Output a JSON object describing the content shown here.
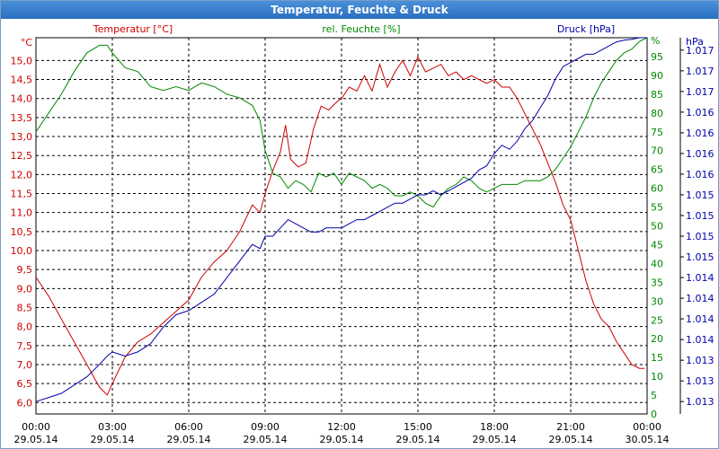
{
  "window": {
    "title": "Temperatur, Feuchte & Druck"
  },
  "chart_data": {
    "type": "line",
    "title": "Temperatur, Feuchte & Druck",
    "x_ticks": [
      {
        "time": "00:00",
        "date": "29.05.14"
      },
      {
        "time": "03:00",
        "date": "29.05.14"
      },
      {
        "time": "06:00",
        "date": "29.05.14"
      },
      {
        "time": "09:00",
        "date": "29.05.14"
      },
      {
        "time": "12:00",
        "date": "29.05.14"
      },
      {
        "time": "15:00",
        "date": "29.05.14"
      },
      {
        "time": "18:00",
        "date": "29.05.14"
      },
      {
        "time": "21:00",
        "date": "29.05.14"
      },
      {
        "time": "00:00",
        "date": "30.05.14"
      }
    ],
    "x_range_hours": [
      0,
      24
    ],
    "grid": true,
    "axes": {
      "temperature": {
        "label": "Temperatur [°C]",
        "unit": "°C",
        "color": "#cc0000",
        "ylim": [
          5.7,
          15.6
        ],
        "ticks": [
          "6,0",
          "6,5",
          "7,0",
          "7,5",
          "8,0",
          "8,5",
          "9,0",
          "9,5",
          "10,0",
          "10,5",
          "11,0",
          "11,5",
          "12,0",
          "12,5",
          "13,0",
          "13,5",
          "14,0",
          "14,5",
          "15,0"
        ]
      },
      "humidity": {
        "label": "rel. Feuchte [%]",
        "unit": "%",
        "color": "#008800",
        "ylim": [
          0,
          100
        ],
        "ticks": [
          "0",
          "5",
          "10",
          "15",
          "20",
          "25",
          "30",
          "35",
          "40",
          "45",
          "50",
          "55",
          "60",
          "65",
          "70",
          "75",
          "80",
          "85",
          "90",
          "95"
        ]
      },
      "pressure": {
        "label": "Druck [hPa]",
        "unit": "hPa",
        "color": "#0000aa",
        "ylim": [
          1012.75,
          1017.3
        ],
        "ticks": [
          {
            "v": 1012.9,
            "t": "1.013"
          },
          {
            "v": 1013.15,
            "t": "1.013"
          },
          {
            "v": 1013.4,
            "t": "1.013"
          },
          {
            "v": 1013.65,
            "t": "1.014"
          },
          {
            "v": 1013.9,
            "t": "1.014"
          },
          {
            "v": 1014.15,
            "t": "1.014"
          },
          {
            "v": 1014.4,
            "t": "1.014"
          },
          {
            "v": 1014.65,
            "t": "1.015"
          },
          {
            "v": 1014.9,
            "t": "1.015"
          },
          {
            "v": 1015.15,
            "t": "1.015"
          },
          {
            "v": 1015.4,
            "t": "1.015"
          },
          {
            "v": 1015.65,
            "t": "1.016"
          },
          {
            "v": 1015.9,
            "t": "1.016"
          },
          {
            "v": 1016.15,
            "t": "1.016"
          },
          {
            "v": 1016.4,
            "t": "1.016"
          },
          {
            "v": 1016.65,
            "t": "1.017"
          },
          {
            "v": 1016.9,
            "t": "1.017"
          },
          {
            "v": 1017.15,
            "t": "1.017"
          }
        ]
      }
    },
    "series": [
      {
        "name": "Temperatur [°C]",
        "axis": "temperature",
        "color": "#cc0000",
        "x": [
          0,
          0.5,
          1,
          1.5,
          2,
          2.5,
          2.8,
          3,
          3.5,
          4,
          4.5,
          5,
          5.5,
          6,
          6.5,
          7,
          7.5,
          8,
          8.5,
          8.8,
          9,
          9.3,
          9.6,
          9.8,
          10,
          10.3,
          10.6,
          10.9,
          11.2,
          11.5,
          11.8,
          12,
          12.3,
          12.6,
          12.9,
          13.2,
          13.5,
          13.8,
          14.1,
          14.4,
          14.7,
          15,
          15.3,
          15.6,
          15.9,
          16.2,
          16.5,
          16.8,
          17.1,
          17.4,
          17.7,
          18,
          18.3,
          18.6,
          18.9,
          19.2,
          19.5,
          19.8,
          20.1,
          20.4,
          20.7,
          21,
          21.3,
          21.6,
          21.9,
          22.2,
          22.5,
          22.8,
          23.1,
          23.4,
          23.7,
          23.9
        ],
        "values": [
          9.3,
          8.8,
          8.2,
          7.6,
          7.0,
          6.4,
          6.2,
          6.5,
          7.2,
          7.6,
          7.8,
          8.1,
          8.4,
          8.7,
          9.3,
          9.7,
          10.0,
          10.5,
          11.2,
          11.0,
          11.5,
          12.1,
          12.6,
          13.3,
          12.4,
          12.2,
          12.3,
          13.2,
          13.8,
          13.7,
          13.9,
          14.0,
          14.3,
          14.2,
          14.6,
          14.2,
          14.9,
          14.3,
          14.7,
          15.0,
          14.6,
          15.1,
          14.7,
          14.8,
          14.9,
          14.6,
          14.7,
          14.5,
          14.6,
          14.5,
          14.4,
          14.5,
          14.3,
          14.3,
          14.0,
          13.6,
          13.2,
          12.8,
          12.3,
          11.8,
          11.2,
          10.8,
          10.0,
          9.2,
          8.6,
          8.2,
          8.0,
          7.6,
          7.3,
          7.0,
          6.9,
          6.9
        ]
      },
      {
        "name": "rel. Feuchte [%]",
        "axis": "humidity",
        "color": "#008800",
        "x": [
          0,
          0.5,
          1,
          1.5,
          2,
          2.5,
          2.8,
          3,
          3.5,
          4,
          4.5,
          5,
          5.5,
          6,
          6.5,
          7,
          7.5,
          8,
          8.5,
          8.8,
          9,
          9.3,
          9.6,
          9.9,
          10.2,
          10.5,
          10.8,
          11.1,
          11.4,
          11.7,
          12,
          12.3,
          12.6,
          12.9,
          13.2,
          13.5,
          13.8,
          14.1,
          14.4,
          14.7,
          15,
          15.3,
          15.6,
          15.9,
          16.2,
          16.5,
          16.8,
          17.1,
          17.4,
          17.7,
          18,
          18.3,
          18.6,
          18.9,
          19.2,
          19.5,
          19.8,
          20.1,
          20.4,
          20.7,
          21,
          21.3,
          21.6,
          21.9,
          22.2,
          22.5,
          22.8,
          23.1,
          23.4,
          23.7,
          24
        ],
        "values": [
          75,
          80,
          85,
          91,
          96,
          98,
          98,
          96,
          92,
          91,
          87,
          86,
          87,
          86,
          88,
          87,
          85,
          84,
          82,
          78,
          70,
          64,
          63,
          60,
          62,
          61,
          59,
          64,
          63,
          64,
          61,
          64,
          63,
          62,
          60,
          61,
          60,
          58,
          58,
          59,
          58,
          56,
          55,
          58,
          60,
          61,
          63,
          62,
          60,
          59,
          60,
          61,
          61,
          61,
          62,
          62,
          62,
          63,
          65,
          68,
          71,
          75,
          79,
          84,
          88,
          91,
          94,
          96,
          97,
          99,
          100
        ]
      },
      {
        "name": "Druck [hPa]",
        "axis": "pressure",
        "color": "#0000aa",
        "x": [
          0,
          0.5,
          1,
          1.5,
          2,
          2.5,
          2.8,
          3,
          3.5,
          4,
          4.5,
          5,
          5.5,
          6,
          6.5,
          7,
          7.5,
          8,
          8.5,
          8.8,
          9,
          9.3,
          9.6,
          9.9,
          10.2,
          10.5,
          10.8,
          11.1,
          11.4,
          11.7,
          12,
          12.3,
          12.6,
          12.9,
          13.2,
          13.5,
          13.8,
          14.1,
          14.4,
          14.7,
          15,
          15.3,
          15.6,
          15.9,
          16.2,
          16.5,
          16.8,
          17.1,
          17.4,
          17.7,
          18,
          18.3,
          18.6,
          18.9,
          19.2,
          19.5,
          19.8,
          20.1,
          20.4,
          20.7,
          21,
          21.3,
          21.6,
          21.9,
          22.2,
          22.5,
          22.8,
          23.1,
          23.4,
          23.7,
          24
        ],
        "values": [
          1012.9,
          1012.95,
          1013.0,
          1013.1,
          1013.2,
          1013.35,
          1013.45,
          1013.5,
          1013.45,
          1013.5,
          1013.6,
          1013.8,
          1013.95,
          1014.0,
          1014.1,
          1014.2,
          1014.4,
          1014.6,
          1014.8,
          1014.75,
          1014.9,
          1014.9,
          1015.0,
          1015.1,
          1015.05,
          1015.0,
          1014.95,
          1014.95,
          1015.0,
          1015.0,
          1015.0,
          1015.05,
          1015.1,
          1015.1,
          1015.15,
          1015.2,
          1015.25,
          1015.3,
          1015.3,
          1015.35,
          1015.4,
          1015.4,
          1015.45,
          1015.4,
          1015.45,
          1015.5,
          1015.55,
          1015.6,
          1015.7,
          1015.75,
          1015.9,
          1016.0,
          1015.95,
          1016.05,
          1016.2,
          1016.3,
          1016.45,
          1016.6,
          1016.8,
          1016.95,
          1017.0,
          1017.05,
          1017.1,
          1017.1,
          1017.15,
          1017.2,
          1017.25,
          1017.27,
          1017.28,
          1017.3,
          1017.3
        ]
      }
    ]
  }
}
